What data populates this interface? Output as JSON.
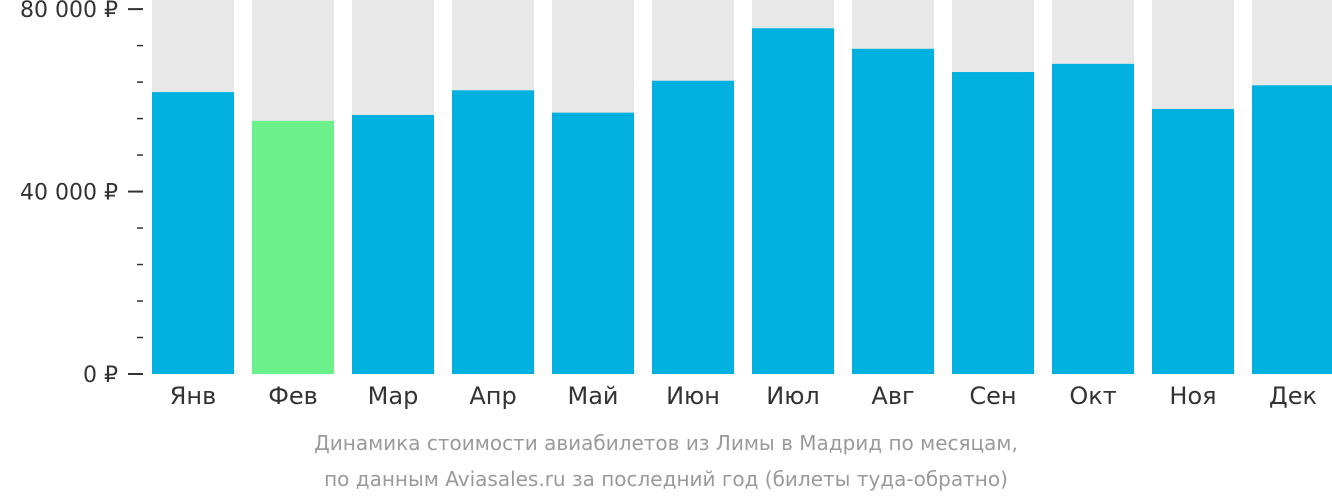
{
  "chart_data": {
    "type": "bar",
    "categories": [
      "Янв",
      "Фев",
      "Мар",
      "Апр",
      "Май",
      "Июн",
      "Июл",
      "Авг",
      "Сен",
      "Окт",
      "Ноя",
      "Дек"
    ],
    "values": [
      61800,
      55500,
      56800,
      62200,
      57300,
      64300,
      75800,
      71300,
      66200,
      68000,
      58100,
      63300
    ],
    "highlight_index": 1,
    "ylim": [
      0,
      82000
    ],
    "yticks": [
      {
        "value": 0,
        "label": "0 ₽"
      },
      {
        "value": 40000,
        "label": "40 000 ₽"
      },
      {
        "value": 80000,
        "label": "80 000 ₽"
      }
    ],
    "minor_tick_step": 8000,
    "title": "",
    "xlabel": "",
    "ylabel": "",
    "grid": false,
    "legend": "none",
    "colors": {
      "bar": "#00b0de",
      "highlight": "#6bf08a",
      "background_bar": "#e8e8e8",
      "axis": "#333333"
    }
  },
  "caption": {
    "line1": "Динамика стоимости авиабилетов из Лимы в Мадрид по месяцам,",
    "line2": "по данным Aviasales.ru за последний год (билеты туда-обратно)"
  }
}
